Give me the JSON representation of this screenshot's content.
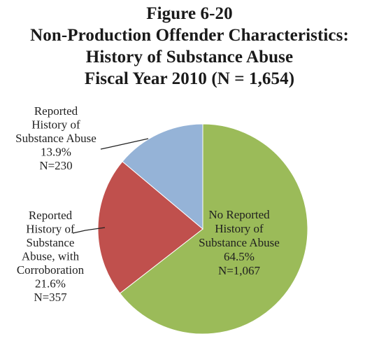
{
  "figure": {
    "title_lines": [
      "Figure 6-20",
      "Non-Production Offender  Characteristics:",
      "History of Substance Abuse",
      "Fiscal Year 2010 (N = 1,654)"
    ]
  },
  "chart_data": {
    "type": "pie",
    "title": "Figure 6-20 Non-Production Offender Characteristics: History of Substance Abuse Fiscal Year 2010 (N = 1,654)",
    "total": 1654,
    "slices": [
      {
        "name": "No Reported History of Substance Abuse",
        "percent": 64.5,
        "count": 1067,
        "color": "#9bbb59",
        "label_lines": [
          "No Reported",
          "History of",
          "Substance Abuse",
          "64.5%",
          "N=1,067"
        ]
      },
      {
        "name": "Reported History of Substance Abuse, with Corroboration",
        "percent": 21.6,
        "count": 357,
        "color": "#c0504d",
        "label_lines": [
          "Reported",
          "History of",
          "Substance",
          "Abuse, with",
          "Corroboration",
          "21.6%",
          "N=357"
        ]
      },
      {
        "name": "Reported History of Substance Abuse",
        "percent": 13.9,
        "count": 230,
        "color": "#95b3d7",
        "label_lines": [
          "Reported",
          "History of",
          "Substance Abuse",
          "13.9%",
          "N=230"
        ]
      }
    ]
  }
}
